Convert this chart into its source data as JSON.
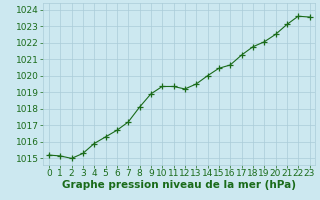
{
  "x": [
    0,
    1,
    2,
    3,
    4,
    5,
    6,
    7,
    8,
    9,
    10,
    11,
    12,
    13,
    14,
    15,
    16,
    17,
    18,
    19,
    20,
    21,
    22,
    23
  ],
  "y": [
    1015.2,
    1015.15,
    1015.0,
    1015.3,
    1015.9,
    1016.3,
    1016.7,
    1017.2,
    1018.1,
    1018.9,
    1019.35,
    1019.35,
    1019.2,
    1019.5,
    1020.0,
    1020.45,
    1020.65,
    1021.25,
    1021.75,
    1022.05,
    1022.5,
    1023.1,
    1023.6,
    1023.55
  ],
  "line_color": "#1a6b1a",
  "marker": "+",
  "marker_size": 4,
  "marker_color": "#1a6b1a",
  "bg_color": "#cce8f0",
  "grid_color": "#aaccd8",
  "xlabel": "Graphe pression niveau de la mer (hPa)",
  "xlabel_fontsize": 7.5,
  "xlabel_color": "#1a6b1a",
  "tick_fontsize": 6.5,
  "tick_color": "#1a6b1a",
  "ylim": [
    1014.6,
    1024.4
  ],
  "xlim": [
    -0.5,
    23.5
  ],
  "yticks": [
    1015,
    1016,
    1017,
    1018,
    1019,
    1020,
    1021,
    1022,
    1023,
    1024
  ],
  "xticks": [
    0,
    1,
    2,
    3,
    4,
    5,
    6,
    7,
    8,
    9,
    10,
    11,
    12,
    13,
    14,
    15,
    16,
    17,
    18,
    19,
    20,
    21,
    22,
    23
  ]
}
